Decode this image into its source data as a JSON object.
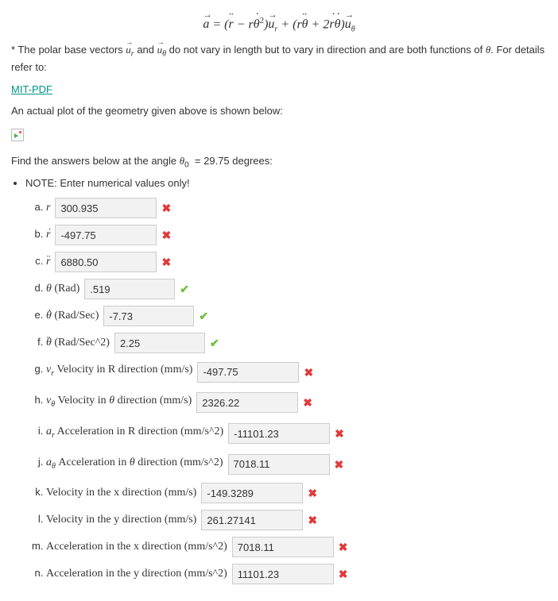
{
  "formula_html": "<span class='arrow'>a</span> = (<span class='dot2'>r</span> &minus; r<span class='dot1'>&theta;</span><sup><span class='upright'>2</span></sup>)<span class='arrow'>u</span><sub class='sub'>r</sub> + (r<span class='dot2'>&theta;</span> + 2<span class='dot1'>r</span><span class='dot1'>&theta;</span>)<span class='arrow'>u</span><sub class='sub'>&theta;</sub>",
  "intro1_html": "* The polar base vectors <span style='font-family:serif;font-style:italic'><span class='arrow'>u</span><sub class='sub'>r</sub></span> and <span style='font-family:serif;font-style:italic'><span class='arrow'>u</span><sub class='sub'>&theta;</sub></span> do not vary in length but to vary in direction and are both functions of <span style='font-family:serif;font-style:italic'>&theta;</span>. For details refer to:",
  "link_text": "MIT-PDF",
  "intro2": "An actual plot of the geometry given above is shown below:",
  "find_html": "Find the answers below at the angle <span style='font-family:serif;font-style:italic'>&theta;</span><sub class='sub'>0</sub> &nbsp;= 29.75 degrees:",
  "note": "NOTE: Enter numerical values only!",
  "items": [
    {
      "label_html": "<span class='math'>r</span>",
      "value": "300.935",
      "width": "w-med",
      "fb": "wrong"
    },
    {
      "label_html": "<span class='math dot1'>r</span>",
      "value": "-497.75",
      "width": "w-med",
      "fb": "wrong"
    },
    {
      "label_html": "<span class='math dot2'>r</span>",
      "value": "6880.50",
      "width": "w-med",
      "fb": "wrong"
    },
    {
      "label_html": "<span class='math'>&theta;</span> (Rad)",
      "value": ".519",
      "width": "w-short",
      "fb": "correct"
    },
    {
      "label_html": "<span class='math dot1'>&theta;</span> (Rad/Sec)",
      "value": "-7.73",
      "width": "w-short",
      "fb": "correct"
    },
    {
      "label_html": "<span class='math dot2'>&theta;</span> (Rad/Sec^2)",
      "value": "2.25",
      "width": "w-short",
      "fb": "correct"
    },
    {
      "label_html": "<span class='math'>v<sub class='sub'>r</sub></span> Velocity in R direction (mm/s)",
      "value": "-497.75",
      "width": "w-med",
      "fb": "wrong"
    },
    {
      "label_html": "<span class='math'>v<sub class='sub'>&theta;</sub></span> Velocity in <span class='math'>&theta;</span> direction (mm/s)",
      "value": "2326.22",
      "width": "w-med",
      "fb": "wrong"
    },
    {
      "label_html": "<span class='math'>a<sub class='sub'>r</sub></span> Acceleration in R direction (mm/s^2)",
      "value": "-11101.23",
      "width": "w-med",
      "fb": "wrong"
    },
    {
      "label_html": "<span class='math'>a<sub class='sub'>&theta;</sub></span> Acceleration in <span class='math'>&theta;</span> direction (mm/s^2)",
      "value": "7018.11",
      "width": "w-med",
      "fb": "wrong"
    },
    {
      "label_html": "Velocity in the x direction (mm/s)",
      "value": "-149.3289",
      "width": "w-med",
      "fb": "wrong"
    },
    {
      "label_html": "Velocity in the y direction (mm/s)",
      "value": "261.27141",
      "width": "w-med",
      "fb": "wrong"
    },
    {
      "label_html": "Acceleration in the x direction (mm/s^2)",
      "value": "7018.11",
      "width": "w-med",
      "fb": "wrong"
    },
    {
      "label_html": "Acceleration in the y direction (mm/s^2)",
      "value": "11101.23",
      "width": "w-med",
      "fb": "wrong"
    }
  ],
  "marks": {
    "correct": "✔",
    "wrong": "✖"
  }
}
